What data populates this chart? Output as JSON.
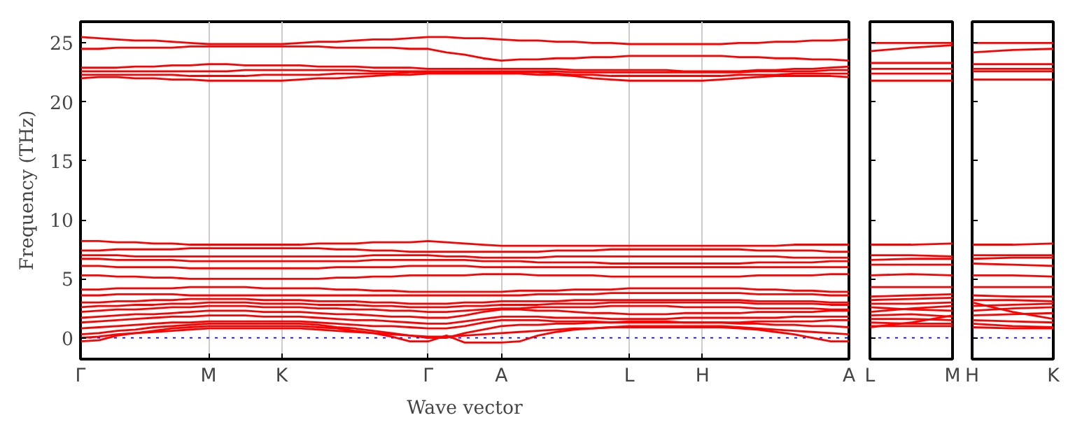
{
  "chart_data": [
    {
      "type": "line",
      "xlabel": "Wave vector",
      "ylabel": "Frequency (THz)",
      "ylim": [
        -1.8,
        26.8
      ],
      "yticks": [
        0,
        5,
        10,
        15,
        20,
        25
      ],
      "grid": "x",
      "categories": [
        "Γ",
        null,
        null,
        null,
        null,
        null,
        null,
        "M",
        null,
        null,
        null,
        "K",
        null,
        null,
        null,
        null,
        null,
        null,
        null,
        "Γ",
        null,
        null,
        null,
        "A",
        null,
        null,
        null,
        null,
        null,
        null,
        "L",
        null,
        null,
        null,
        "H",
        null,
        null,
        null,
        null,
        null,
        null,
        null,
        "A"
      ],
      "ref_lines": [
        {
          "axis": "y",
          "value": 0,
          "color": "#0000ff",
          "line_style": "dotted"
        }
      ],
      "series": [
        {
          "color": "#ff0000",
          "values": [
            25.5,
            25.4,
            25.3,
            25.2,
            25.2,
            25.1,
            25.0,
            24.9,
            24.9,
            24.9,
            24.9,
            24.9,
            25.0,
            25.1,
            25.1,
            25.2,
            25.3,
            25.3,
            25.4,
            25.5,
            25.5,
            25.4,
            25.4,
            25.3,
            25.2,
            25.2,
            25.1,
            25.1,
            25.0,
            25.0,
            24.9,
            24.9,
            24.9,
            24.9,
            24.9,
            24.9,
            25.0,
            25.0,
            25.1,
            25.1,
            25.2,
            25.2,
            25.3
          ]
        },
        {
          "color": "#ff0000",
          "values": [
            24.5,
            24.5,
            24.6,
            24.6,
            24.6,
            24.6,
            24.7,
            24.7,
            24.7,
            24.7,
            24.7,
            24.7,
            24.7,
            24.7,
            24.6,
            24.6,
            24.6,
            24.6,
            24.5,
            24.5,
            24.2,
            24.0,
            23.7,
            23.5,
            23.6,
            23.6,
            23.7,
            23.7,
            23.8,
            23.8,
            23.9,
            23.9,
            23.9,
            23.9,
            23.9,
            23.9,
            23.8,
            23.8,
            23.7,
            23.7,
            23.6,
            23.6,
            23.5
          ]
        },
        {
          "color": "#ff0000",
          "values": [
            22.9,
            22.9,
            22.9,
            23.0,
            23.0,
            23.1,
            23.1,
            23.2,
            23.2,
            23.1,
            23.1,
            23.1,
            23.1,
            23.0,
            23.0,
            23.0,
            22.9,
            22.9,
            22.9,
            22.8,
            22.8,
            22.8,
            22.8,
            22.8,
            22.8,
            22.8,
            22.8,
            22.7,
            22.7,
            22.7,
            22.7,
            22.7,
            22.7,
            22.6,
            22.6,
            22.6,
            22.6,
            22.7,
            22.7,
            22.8,
            22.8,
            22.9,
            23.0
          ]
        },
        {
          "color": "#ff0000",
          "values": [
            22.6,
            22.6,
            22.6,
            22.6,
            22.6,
            22.6,
            22.6,
            22.6,
            22.6,
            22.7,
            22.7,
            22.7,
            22.7,
            22.7,
            22.7,
            22.7,
            22.6,
            22.6,
            22.6,
            22.6,
            22.6,
            22.6,
            22.6,
            22.6,
            22.6,
            22.6,
            22.6,
            22.5,
            22.5,
            22.5,
            22.5,
            22.5,
            22.5,
            22.5,
            22.5,
            22.5,
            22.5,
            22.6,
            22.6,
            22.6,
            22.6,
            22.7,
            22.7
          ]
        },
        {
          "color": "#ff0000",
          "values": [
            22.3,
            22.3,
            22.3,
            22.3,
            22.3,
            22.3,
            22.2,
            22.2,
            22.2,
            22.2,
            22.3,
            22.3,
            22.3,
            22.3,
            22.4,
            22.4,
            22.4,
            22.4,
            22.5,
            22.5,
            22.5,
            22.5,
            22.5,
            22.5,
            22.5,
            22.5,
            22.4,
            22.3,
            22.3,
            22.2,
            22.2,
            22.2,
            22.2,
            22.2,
            22.2,
            22.2,
            22.3,
            22.3,
            22.3,
            22.4,
            22.4,
            22.4,
            22.4
          ]
        },
        {
          "color": "#ff0000",
          "values": [
            22.0,
            22.1,
            22.1,
            22.0,
            22.0,
            21.9,
            21.9,
            21.8,
            21.8,
            21.8,
            21.8,
            21.8,
            21.9,
            22.0,
            22.0,
            22.1,
            22.2,
            22.3,
            22.3,
            22.4,
            22.4,
            22.4,
            22.4,
            22.4,
            22.4,
            22.3,
            22.3,
            22.2,
            22.0,
            21.9,
            21.8,
            21.8,
            21.8,
            21.8,
            21.8,
            21.9,
            22.0,
            22.1,
            22.2,
            22.2,
            22.2,
            22.2,
            22.1
          ]
        },
        {
          "color": "#ff0000",
          "values": [
            8.2,
            8.2,
            8.1,
            8.1,
            8.0,
            8.0,
            7.9,
            7.9,
            7.9,
            7.9,
            7.9,
            7.9,
            7.9,
            8.0,
            8.0,
            8.0,
            8.1,
            8.1,
            8.1,
            8.2,
            8.1,
            8.0,
            7.9,
            7.8,
            7.8,
            7.8,
            7.8,
            7.8,
            7.8,
            7.8,
            7.8,
            7.8,
            7.8,
            7.8,
            7.8,
            7.8,
            7.8,
            7.8,
            7.8,
            7.9,
            7.9,
            7.9,
            7.9
          ]
        },
        {
          "color": "#ff0000",
          "values": [
            7.4,
            7.4,
            7.5,
            7.5,
            7.5,
            7.5,
            7.6,
            7.6,
            7.6,
            7.6,
            7.6,
            7.6,
            7.6,
            7.6,
            7.5,
            7.5,
            7.4,
            7.4,
            7.3,
            7.3,
            7.3,
            7.3,
            7.3,
            7.3,
            7.3,
            7.3,
            7.4,
            7.4,
            7.4,
            7.5,
            7.5,
            7.5,
            7.5,
            7.5,
            7.5,
            7.5,
            7.5,
            7.4,
            7.4,
            7.4,
            7.4,
            7.3,
            7.3
          ]
        },
        {
          "color": "#ff0000",
          "values": [
            7.0,
            7.0,
            7.0,
            6.9,
            6.9,
            6.9,
            6.9,
            6.9,
            6.9,
            6.9,
            6.9,
            6.9,
            6.9,
            6.9,
            6.9,
            6.9,
            7.0,
            7.0,
            7.0,
            7.0,
            6.9,
            6.9,
            6.8,
            6.8,
            6.8,
            6.8,
            6.9,
            6.9,
            6.9,
            6.9,
            6.9,
            6.9,
            6.9,
            6.9,
            6.9,
            6.9,
            6.9,
            6.9,
            6.9,
            6.8,
            6.8,
            6.8,
            6.8
          ]
        },
        {
          "color": "#ff0000",
          "values": [
            6.7,
            6.7,
            6.6,
            6.6,
            6.6,
            6.6,
            6.5,
            6.5,
            6.5,
            6.5,
            6.5,
            6.5,
            6.5,
            6.5,
            6.5,
            6.5,
            6.6,
            6.6,
            6.6,
            6.6,
            6.6,
            6.6,
            6.5,
            6.5,
            6.5,
            6.4,
            6.4,
            6.4,
            6.4,
            6.3,
            6.3,
            6.3,
            6.3,
            6.3,
            6.3,
            6.3,
            6.3,
            6.4,
            6.4,
            6.4,
            6.4,
            6.5,
            6.5
          ]
        },
        {
          "color": "#ff0000",
          "values": [
            6.1,
            6.1,
            6.0,
            6.0,
            6.0,
            6.0,
            5.9,
            5.9,
            5.9,
            5.9,
            5.9,
            5.9,
            5.9,
            5.9,
            6.0,
            6.0,
            6.0,
            6.0,
            6.1,
            6.1,
            6.1,
            6.1,
            6.0,
            6.0,
            6.0,
            6.0,
            6.0,
            6.0,
            6.0,
            6.0,
            6.0,
            6.0,
            6.0,
            6.0,
            6.0,
            6.0,
            6.0,
            6.0,
            6.0,
            6.0,
            6.0,
            6.0,
            6.0
          ]
        },
        {
          "color": "#ff0000",
          "values": [
            5.3,
            5.3,
            5.2,
            5.2,
            5.1,
            5.1,
            5.0,
            5.0,
            5.0,
            5.0,
            5.0,
            5.0,
            5.0,
            5.0,
            5.1,
            5.1,
            5.2,
            5.2,
            5.3,
            5.3,
            5.3,
            5.3,
            5.4,
            5.4,
            5.4,
            5.3,
            5.3,
            5.3,
            5.3,
            5.2,
            5.2,
            5.2,
            5.2,
            5.2,
            5.2,
            5.2,
            5.2,
            5.3,
            5.3,
            5.3,
            5.3,
            5.4,
            5.4
          ]
        },
        {
          "color": "#ff0000",
          "values": [
            4.1,
            4.1,
            4.2,
            4.2,
            4.2,
            4.2,
            4.3,
            4.3,
            4.3,
            4.3,
            4.2,
            4.2,
            4.2,
            4.2,
            4.1,
            4.1,
            4.0,
            4.0,
            3.9,
            3.9,
            3.9,
            3.9,
            3.9,
            3.9,
            4.0,
            4.0,
            4.0,
            4.1,
            4.1,
            4.1,
            4.2,
            4.2,
            4.2,
            4.2,
            4.2,
            4.2,
            4.2,
            4.1,
            4.1,
            4.0,
            4.0,
            3.9,
            3.9
          ]
        },
        {
          "color": "#ff0000",
          "values": [
            3.6,
            3.6,
            3.7,
            3.7,
            3.7,
            3.7,
            3.6,
            3.6,
            3.6,
            3.6,
            3.6,
            3.6,
            3.6,
            3.6,
            3.6,
            3.6,
            3.6,
            3.6,
            3.6,
            3.6,
            3.6,
            3.6,
            3.6,
            3.6,
            3.6,
            3.7,
            3.7,
            3.7,
            3.7,
            3.8,
            3.8,
            3.8,
            3.8,
            3.8,
            3.8,
            3.8,
            3.8,
            3.7,
            3.7,
            3.7,
            3.7,
            3.6,
            3.6
          ]
        },
        {
          "color": "#ff0000",
          "values": [
            3.0,
            3.0,
            3.1,
            3.1,
            3.2,
            3.2,
            3.3,
            3.3,
            3.3,
            3.3,
            3.2,
            3.2,
            3.2,
            3.1,
            3.1,
            3.1,
            3.0,
            3.0,
            2.9,
            2.9,
            2.9,
            3.0,
            3.0,
            3.1,
            3.1,
            3.1,
            3.1,
            3.2,
            3.2,
            3.2,
            3.2,
            3.2,
            3.2,
            3.2,
            3.2,
            3.2,
            3.2,
            3.1,
            3.1,
            3.1,
            3.1,
            3.0,
            3.0
          ]
        },
        {
          "color": "#ff0000",
          "values": [
            2.6,
            2.7,
            2.7,
            2.8,
            2.8,
            2.9,
            2.9,
            3.0,
            3.0,
            3.0,
            2.9,
            2.9,
            2.9,
            2.8,
            2.8,
            2.8,
            2.7,
            2.7,
            2.6,
            2.6,
            2.6,
            2.7,
            2.7,
            2.8,
            2.8,
            2.8,
            2.9,
            2.9,
            2.9,
            3.0,
            3.0,
            3.0,
            3.0,
            3.0,
            3.0,
            3.0,
            3.0,
            2.9,
            2.9,
            2.9,
            2.9,
            2.8,
            2.8
          ]
        },
        {
          "color": "#ff0000",
          "values": [
            2.2,
            2.3,
            2.4,
            2.4,
            2.5,
            2.6,
            2.6,
            2.7,
            2.7,
            2.7,
            2.6,
            2.6,
            2.6,
            2.5,
            2.5,
            2.4,
            2.4,
            2.3,
            2.3,
            2.2,
            2.2,
            2.3,
            2.4,
            2.5,
            2.5,
            2.6,
            2.6,
            2.6,
            2.6,
            2.7,
            2.7,
            2.7,
            2.7,
            2.6,
            2.6,
            2.6,
            2.6,
            2.5,
            2.5,
            2.5,
            2.5,
            2.4,
            2.4
          ]
        },
        {
          "color": "#ff0000",
          "values": [
            1.7,
            1.8,
            1.9,
            2.0,
            2.0,
            2.1,
            2.2,
            2.3,
            2.3,
            2.3,
            2.2,
            2.2,
            2.2,
            2.1,
            2.0,
            2.0,
            1.9,
            1.8,
            1.8,
            1.7,
            1.7,
            1.9,
            2.2,
            2.4,
            2.4,
            2.3,
            2.3,
            2.2,
            2.1,
            2.1,
            2.0,
            2.0,
            2.0,
            2.1,
            2.1,
            2.1,
            2.1,
            2.2,
            2.2,
            2.2,
            2.2,
            2.3,
            2.3
          ]
        },
        {
          "color": "#ff0000",
          "values": [
            1.3,
            1.4,
            1.5,
            1.6,
            1.7,
            1.8,
            1.8,
            1.9,
            1.9,
            1.9,
            1.8,
            1.8,
            1.8,
            1.7,
            1.6,
            1.5,
            1.5,
            1.4,
            1.3,
            1.2,
            1.2,
            1.4,
            1.6,
            1.8,
            1.8,
            1.8,
            1.7,
            1.7,
            1.7,
            1.6,
            1.6,
            1.6,
            1.6,
            1.7,
            1.7,
            1.7,
            1.7,
            1.7,
            1.7,
            1.8,
            1.8,
            1.8,
            1.8
          ]
        },
        {
          "color": "#ff0000",
          "values": [
            0.8,
            0.9,
            1.0,
            1.1,
            1.2,
            1.3,
            1.3,
            1.4,
            1.4,
            1.4,
            1.4,
            1.4,
            1.4,
            1.3,
            1.2,
            1.1,
            1.0,
            1.0,
            0.9,
            0.8,
            0.8,
            1.0,
            1.3,
            1.5,
            1.5,
            1.5,
            1.4,
            1.4,
            1.4,
            1.3,
            1.3,
            1.3,
            1.3,
            1.3,
            1.3,
            1.3,
            1.3,
            1.4,
            1.4,
            1.4,
            1.4,
            1.5,
            1.5
          ]
        },
        {
          "color": "#ff0000",
          "values": [
            0.3,
            0.4,
            0.6,
            0.7,
            0.9,
            1.0,
            1.1,
            1.2,
            1.2,
            1.2,
            1.2,
            1.2,
            1.2,
            1.1,
            0.9,
            0.8,
            0.6,
            0.4,
            0.2,
            0.0,
            0.0,
            0.4,
            0.7,
            1.0,
            1.1,
            1.1,
            1.2,
            1.2,
            1.3,
            1.3,
            1.4,
            1.4,
            1.4,
            1.3,
            1.3,
            1.3,
            1.2,
            1.2,
            1.1,
            1.1,
            1.0,
            1.0,
            0.9
          ]
        },
        {
          "color": "#ff0000",
          "values": [
            0.0,
            0.1,
            0.3,
            0.4,
            0.5,
            0.6,
            0.7,
            0.8,
            0.8,
            0.8,
            0.8,
            0.8,
            0.8,
            0.7,
            0.6,
            0.5,
            0.4,
            0.3,
            0.2,
            0.1,
            0.1,
            0.2,
            0.3,
            0.4,
            0.5,
            0.6,
            0.7,
            0.8,
            0.8,
            0.9,
            1.0,
            1.0,
            1.0,
            1.0,
            1.0,
            1.0,
            0.9,
            0.8,
            0.7,
            0.6,
            0.5,
            0.4,
            0.3
          ]
        },
        {
          "color": "#ff0000",
          "values": [
            -0.3,
            -0.2,
            0.2,
            0.4,
            0.6,
            0.8,
            0.9,
            1.0,
            1.0,
            1.0,
            1.0,
            1.0,
            1.0,
            0.9,
            0.8,
            0.6,
            0.4,
            0.1,
            -0.3,
            -0.3,
            0.2,
            -0.4,
            -0.4,
            -0.4,
            -0.3,
            0.2,
            0.5,
            0.7,
            0.8,
            0.9,
            0.9,
            0.9,
            0.9,
            0.9,
            0.9,
            0.9,
            0.8,
            0.7,
            0.5,
            0.3,
            0.0,
            -0.3,
            -0.3
          ]
        }
      ]
    },
    {
      "type": "line",
      "ylim": [
        -1.8,
        26.8
      ],
      "yticks": [
        0,
        5,
        10,
        15,
        20,
        25
      ],
      "tick_labels": "x",
      "categories": [
        "L",
        null,
        "M"
      ],
      "ref_lines": [
        {
          "axis": "y",
          "value": 0,
          "color": "#0000ff",
          "line_style": "dotted"
        }
      ],
      "series": [
        {
          "color": "#ff0000",
          "values": [
            25.0,
            25.0,
            25.0
          ]
        },
        {
          "color": "#ff0000",
          "values": [
            24.3,
            24.6,
            24.8
          ]
        },
        {
          "color": "#ff0000",
          "values": [
            23.3,
            23.3,
            23.3
          ]
        },
        {
          "color": "#ff0000",
          "values": [
            22.8,
            22.8,
            22.8
          ]
        },
        {
          "color": "#ff0000",
          "values": [
            22.4,
            22.4,
            22.4
          ]
        },
        {
          "color": "#ff0000",
          "values": [
            21.8,
            21.8,
            21.8
          ]
        },
        {
          "color": "#ff0000",
          "values": [
            7.9,
            7.9,
            8.0
          ]
        },
        {
          "color": "#ff0000",
          "values": [
            7.0,
            7.0,
            6.9
          ]
        },
        {
          "color": "#ff0000",
          "values": [
            6.6,
            6.7,
            6.7
          ]
        },
        {
          "color": "#ff0000",
          "values": [
            6.2,
            6.2,
            6.2
          ]
        },
        {
          "color": "#ff0000",
          "values": [
            5.3,
            5.4,
            5.3
          ]
        },
        {
          "color": "#ff0000",
          "values": [
            4.3,
            4.3,
            4.3
          ]
        },
        {
          "color": "#ff0000",
          "values": [
            3.5,
            3.6,
            3.7
          ]
        },
        {
          "color": "#ff0000",
          "values": [
            3.2,
            3.3,
            3.4
          ]
        },
        {
          "color": "#ff0000",
          "values": [
            2.9,
            2.9,
            3.0
          ]
        },
        {
          "color": "#ff0000",
          "values": [
            2.6,
            2.4,
            2.3
          ]
        },
        {
          "color": "#ff0000",
          "values": [
            2.2,
            2.5,
            2.7
          ]
        },
        {
          "color": "#ff0000",
          "values": [
            1.9,
            2.0,
            1.8
          ]
        },
        {
          "color": "#ff0000",
          "values": [
            1.6,
            1.6,
            1.5
          ]
        },
        {
          "color": "#ff0000",
          "values": [
            1.3,
            1.2,
            1.2
          ]
        },
        {
          "color": "#ff0000",
          "values": [
            1.0,
            1.0,
            1.0
          ]
        },
        {
          "color": "#ff0000",
          "values": [
            0.9,
            1.3,
            1.9
          ]
        }
      ]
    },
    {
      "type": "line",
      "ylim": [
        -1.8,
        26.8
      ],
      "yticks": [
        0,
        5,
        10,
        15,
        20,
        25
      ],
      "tick_labels": "x",
      "categories": [
        "H",
        null,
        "K"
      ],
      "ref_lines": [
        {
          "axis": "y",
          "value": 0,
          "color": "#0000ff",
          "line_style": "dotted"
        }
      ],
      "series": [
        {
          "color": "#ff0000",
          "values": [
            25.0,
            25.0,
            25.0
          ]
        },
        {
          "color": "#ff0000",
          "values": [
            24.2,
            24.4,
            24.5
          ]
        },
        {
          "color": "#ff0000",
          "values": [
            23.2,
            23.2,
            23.2
          ]
        },
        {
          "color": "#ff0000",
          "values": [
            22.8,
            22.8,
            22.8
          ]
        },
        {
          "color": "#ff0000",
          "values": [
            22.6,
            22.6,
            22.6
          ]
        },
        {
          "color": "#ff0000",
          "values": [
            21.9,
            21.9,
            21.9
          ]
        },
        {
          "color": "#ff0000",
          "values": [
            7.9,
            7.9,
            8.0
          ]
        },
        {
          "color": "#ff0000",
          "values": [
            7.0,
            7.0,
            7.0
          ]
        },
        {
          "color": "#ff0000",
          "values": [
            6.7,
            6.8,
            6.8
          ]
        },
        {
          "color": "#ff0000",
          "values": [
            6.3,
            6.2,
            6.1
          ]
        },
        {
          "color": "#ff0000",
          "values": [
            5.3,
            5.3,
            5.2
          ]
        },
        {
          "color": "#ff0000",
          "values": [
            4.3,
            4.3,
            4.3
          ]
        },
        {
          "color": "#ff0000",
          "values": [
            3.6,
            3.5,
            3.5
          ]
        },
        {
          "color": "#ff0000",
          "values": [
            3.2,
            3.2,
            3.1
          ]
        },
        {
          "color": "#ff0000",
          "values": [
            3.0,
            2.2,
            1.6
          ]
        },
        {
          "color": "#ff0000",
          "values": [
            2.7,
            2.8,
            2.9
          ]
        },
        {
          "color": "#ff0000",
          "values": [
            2.3,
            2.5,
            2.6
          ]
        },
        {
          "color": "#ff0000",
          "values": [
            1.9,
            2.0,
            2.1
          ]
        },
        {
          "color": "#ff0000",
          "values": [
            1.5,
            1.4,
            1.3
          ]
        },
        {
          "color": "#ff0000",
          "values": [
            1.2,
            1.0,
            0.9
          ]
        },
        {
          "color": "#ff0000",
          "values": [
            0.9,
            0.8,
            0.8
          ]
        }
      ]
    }
  ]
}
